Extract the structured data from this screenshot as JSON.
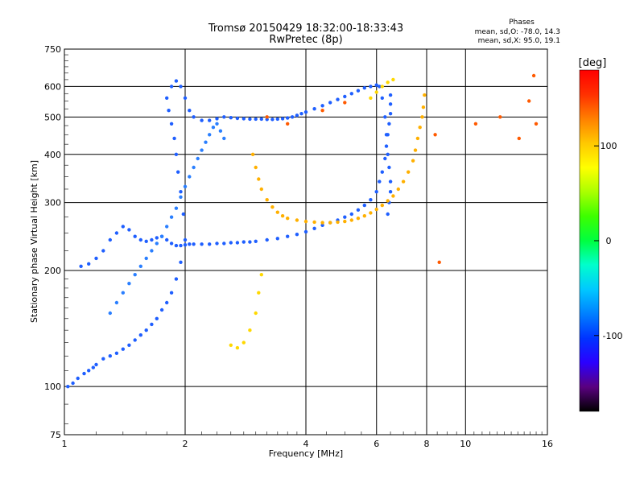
{
  "chart_data": {
    "type": "scatter",
    "title": "Tromsø 20150429 18:32:00-18:33:43",
    "subtitle": "RwPretec (8p)",
    "xlabel": "Frequency [MHz]",
    "ylabel": "Stationary phase Virtual Height [km]",
    "x_scale": "log2",
    "y_scale": "log",
    "xlim": [
      1,
      16
    ],
    "ylim": [
      75,
      750
    ],
    "x_ticks": [
      1,
      2,
      4,
      6,
      8,
      10,
      16
    ],
    "y_ticks": [
      75,
      100,
      200,
      300,
      400,
      500,
      600,
      750
    ],
    "grid": true,
    "phase_info": {
      "heading": "Phases",
      "line_o": "mean, sd,O: -78.0, 14.3",
      "line_x": "mean, sd,X:  95.0, 19.1"
    },
    "colorbar": {
      "label": "[deg]",
      "ticks": [
        100,
        0,
        -100
      ],
      "range": [
        -180,
        180
      ],
      "colors": [
        "#000000",
        "#5a007f",
        "#2b00ff",
        "#0033ff",
        "#0080ff",
        "#00c8ff",
        "#00ffcc",
        "#00ff40",
        "#3cff00",
        "#aaff00",
        "#ffff00",
        "#ffc800",
        "#ff8000",
        "#ff3000",
        "#ff0000"
      ]
    },
    "series": [
      {
        "color": "#1f5fff",
        "phase_deg": -100,
        "x": [
          1.02,
          1.05,
          1.08,
          1.12,
          1.15,
          1.18,
          1.2,
          1.25,
          1.3,
          1.35,
          1.4,
          1.45,
          1.5,
          1.55,
          1.6,
          1.65,
          1.7,
          1.75,
          1.8,
          1.85,
          1.9,
          1.95,
          2.0,
          1.98,
          1.95,
          1.92,
          1.9,
          1.88,
          1.85,
          1.82,
          1.8,
          1.85,
          1.9,
          1.95,
          2.0,
          2.05,
          2.1,
          2.2,
          2.3,
          2.4,
          2.5,
          2.6,
          2.7,
          2.8,
          2.9,
          3.0,
          3.1,
          3.2,
          3.3,
          3.4,
          3.5,
          3.6,
          3.7,
          3.8,
          3.9,
          4.0,
          4.2,
          4.4,
          4.6,
          4.8,
          5.0,
          5.2,
          5.4,
          5.6,
          5.8,
          6.0,
          6.1,
          6.2,
          6.3,
          6.35,
          6.4,
          6.45,
          6.5,
          6.5,
          6.45,
          6.4
        ],
        "y": [
          100,
          102,
          105,
          108,
          110,
          112,
          114,
          118,
          120,
          122,
          125,
          128,
          132,
          136,
          140,
          145,
          150,
          158,
          165,
          175,
          190,
          210,
          240,
          280,
          320,
          360,
          400,
          440,
          480,
          520,
          560,
          600,
          620,
          600,
          560,
          520,
          500,
          490,
          490,
          495,
          500,
          498,
          496,
          495,
          494,
          494,
          494,
          493,
          493,
          494,
          495,
          497,
          500,
          505,
          510,
          515,
          525,
          535,
          545,
          555,
          565,
          575,
          585,
          595,
          600,
          605,
          600,
          560,
          500,
          450,
          400,
          370,
          340,
          320,
          300,
          280
        ]
      },
      {
        "color": "#1f5fff",
        "phase_deg": -95,
        "x": [
          1.1,
          1.15,
          1.2,
          1.25,
          1.3,
          1.35,
          1.4,
          1.45,
          1.5,
          1.55,
          1.6,
          1.65,
          1.7,
          1.75,
          1.8,
          1.85,
          1.9,
          1.95,
          2.0,
          2.05,
          2.1,
          2.2,
          2.3,
          2.4,
          2.5,
          2.6,
          2.7,
          2.8,
          2.9,
          3.0,
          3.2,
          3.4,
          3.6,
          3.8,
          4.0,
          4.2,
          4.4,
          4.6,
          4.8,
          5.0,
          5.2,
          5.4,
          5.6,
          5.8,
          6.0,
          6.1,
          6.2,
          6.3,
          6.35,
          6.4,
          6.45,
          6.5,
          6.5,
          6.5
        ],
        "y": [
          205,
          208,
          215,
          225,
          240,
          250,
          260,
          255,
          245,
          240,
          238,
          240,
          243,
          245,
          240,
          235,
          232,
          232,
          233,
          234,
          234,
          234,
          234,
          235,
          235,
          236,
          236,
          237,
          237,
          238,
          240,
          242,
          245,
          248,
          252,
          257,
          262,
          266,
          270,
          275,
          280,
          287,
          295,
          305,
          320,
          340,
          360,
          390,
          420,
          450,
          480,
          510,
          540,
          570
        ]
      },
      {
        "color": "#2a7fff",
        "phase_deg": -85,
        "x": [
          1.3,
          1.35,
          1.4,
          1.45,
          1.5,
          1.55,
          1.6,
          1.65,
          1.7,
          1.75,
          1.8,
          1.85,
          1.9,
          1.95,
          2.0,
          2.05,
          2.1,
          2.15,
          2.2,
          2.25,
          2.3,
          2.35,
          2.4,
          2.45,
          2.5
        ],
        "y": [
          155,
          165,
          175,
          185,
          195,
          205,
          215,
          225,
          235,
          245,
          260,
          275,
          290,
          310,
          330,
          350,
          370,
          390,
          410,
          430,
          450,
          470,
          480,
          460,
          440
        ]
      },
      {
        "color": "#ffb000",
        "phase_deg": 110,
        "x": [
          2.95,
          3.0,
          3.05,
          3.1,
          3.2,
          3.3,
          3.4,
          3.5,
          3.6,
          3.8,
          4.0,
          4.2,
          4.4,
          4.6,
          4.8,
          5.0,
          5.2,
          5.4,
          5.6,
          5.8,
          6.0,
          6.2,
          6.4,
          6.6,
          6.8,
          7.0,
          7.2,
          7.4,
          7.5,
          7.6,
          7.7,
          7.8,
          7.85,
          7.9
        ],
        "y": [
          400,
          370,
          345,
          325,
          305,
          292,
          283,
          277,
          273,
          270,
          268,
          267,
          266,
          266,
          267,
          268,
          270,
          273,
          277,
          282,
          288,
          295,
          303,
          312,
          325,
          340,
          360,
          385,
          410,
          440,
          470,
          500,
          530,
          570
        ]
      },
      {
        "color": "#ffd800",
        "phase_deg": 100,
        "x": [
          2.6,
          2.7,
          2.8,
          2.9,
          3.0,
          3.05,
          3.1
        ],
        "y": [
          128,
          126,
          130,
          140,
          155,
          175,
          195
        ]
      },
      {
        "color": "#ffd800",
        "phase_deg": 95,
        "x": [
          5.8,
          6.0,
          6.2,
          6.4,
          6.6
        ],
        "y": [
          560,
          580,
          600,
          615,
          625
        ]
      },
      {
        "color": "#ff5a00",
        "phase_deg": 150,
        "x": [
          3.2,
          3.6,
          4.4,
          5.0,
          8.4,
          8.6,
          10.6,
          12.2,
          13.6,
          14.4,
          14.8,
          15.0
        ],
        "y": [
          500,
          480,
          520,
          545,
          450,
          210,
          480,
          500,
          440,
          550,
          640,
          480
        ]
      }
    ]
  }
}
